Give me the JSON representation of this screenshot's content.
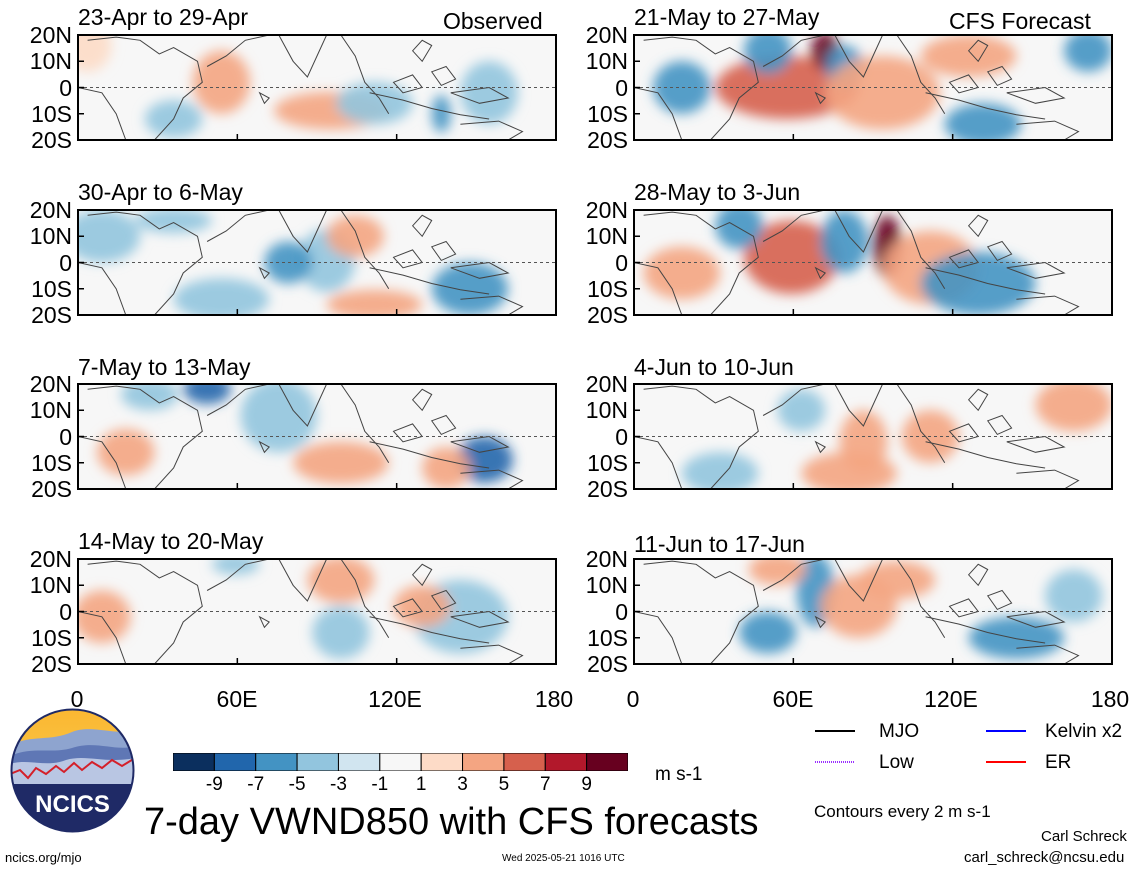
{
  "chart_data": {
    "type": "heatmap",
    "title": "7-day VWND850 with CFS forecasts",
    "units": "m s-1",
    "contour_note": "Contours every 2 m s-1",
    "latitude_labels": [
      "20N",
      "10N",
      "0",
      "10S",
      "20S"
    ],
    "longitude_labels": [
      "0",
      "60E",
      "120E",
      "180"
    ],
    "observed_label": "Observed",
    "forecast_label": "CFS Forecast",
    "panels_observed": [
      {
        "period": "23-Apr to 29-Apr"
      },
      {
        "period": "30-Apr to 6-May"
      },
      {
        "period": "7-May to 13-May"
      },
      {
        "period": "14-May to 20-May"
      }
    ],
    "panels_forecast": [
      {
        "period": "21-May to 27-May"
      },
      {
        "period": "28-May to 3-Jun"
      },
      {
        "period": "4-Jun to 10-Jun"
      },
      {
        "period": "11-Jun to 17-Jun"
      }
    ],
    "colorbar": {
      "ticks": [
        "-9",
        "-7",
        "-5",
        "-3",
        "-1",
        "1",
        "3",
        "5",
        "7",
        "9"
      ],
      "colors": [
        "#0b2f5e",
        "#2166ac",
        "#4393c3",
        "#92c5de",
        "#d1e5f0",
        "#f7f7f7",
        "#fddbc7",
        "#f4a582",
        "#d6604d",
        "#b2182b",
        "#67001f"
      ]
    },
    "contour_legend": [
      {
        "label": "MJO",
        "color": "#000000"
      },
      {
        "label": "Kelvin x2",
        "color": "#0000ff"
      },
      {
        "label": "Low",
        "color": "#9b30ff"
      },
      {
        "label": "ER",
        "color": "#ff0000"
      }
    ]
  },
  "branding": {
    "logo_text": "NCICS",
    "url": "ncics.org/mjo",
    "timestamp": "Wed 2025-05-21 1016 UTC",
    "author": "Carl Schreck",
    "email": "carl_schreck@ncsu.edu"
  }
}
